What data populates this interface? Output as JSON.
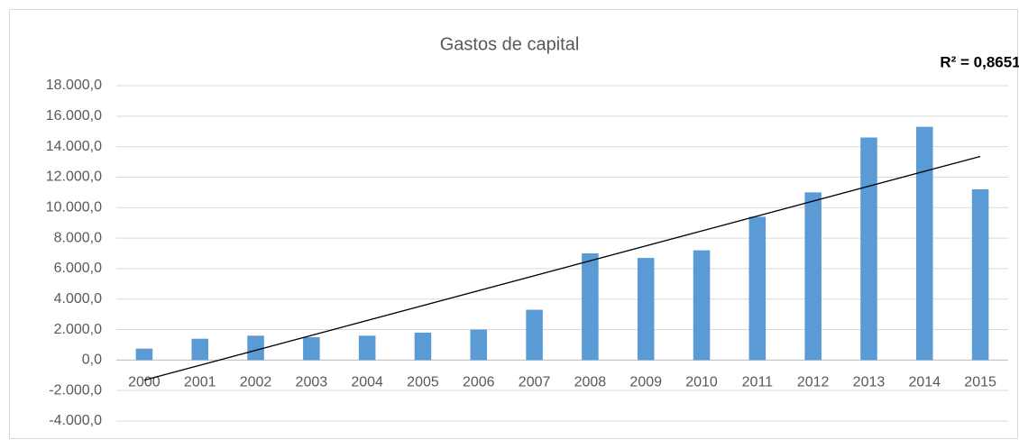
{
  "chart_data": {
    "type": "bar",
    "title": "Gastos de capital",
    "annotation": "R² = 0,8651",
    "categories": [
      "2000",
      "2001",
      "2002",
      "2003",
      "2004",
      "2005",
      "2006",
      "2007",
      "2008",
      "2009",
      "2010",
      "2011",
      "2012",
      "2013",
      "2014",
      "2015"
    ],
    "values": [
      750,
      1400,
      1600,
      1500,
      1600,
      1800,
      2000,
      3300,
      7000,
      6700,
      7200,
      9400,
      11000,
      14600,
      15300,
      11200
    ],
    "color": "#5b9bd5",
    "trendline": "linear",
    "ylim": [
      -4000,
      18000
    ],
    "yticks": [
      {
        "value": -4000,
        "label": "-4.000,0"
      },
      {
        "value": -2000,
        "label": "-2.000,0"
      },
      {
        "value": 0,
        "label": "0,0"
      },
      {
        "value": 2000,
        "label": "2.000,0"
      },
      {
        "value": 4000,
        "label": "4.000,0"
      },
      {
        "value": 6000,
        "label": "6.000,0"
      },
      {
        "value": 8000,
        "label": "8.000,0"
      },
      {
        "value": 10000,
        "label": "10.000,0"
      },
      {
        "value": 12000,
        "label": "12.000,0"
      },
      {
        "value": 14000,
        "label": "14.000,0"
      },
      {
        "value": 16000,
        "label": "16.000,0"
      },
      {
        "value": 18000,
        "label": "18.000,0"
      }
    ],
    "grid": true
  }
}
